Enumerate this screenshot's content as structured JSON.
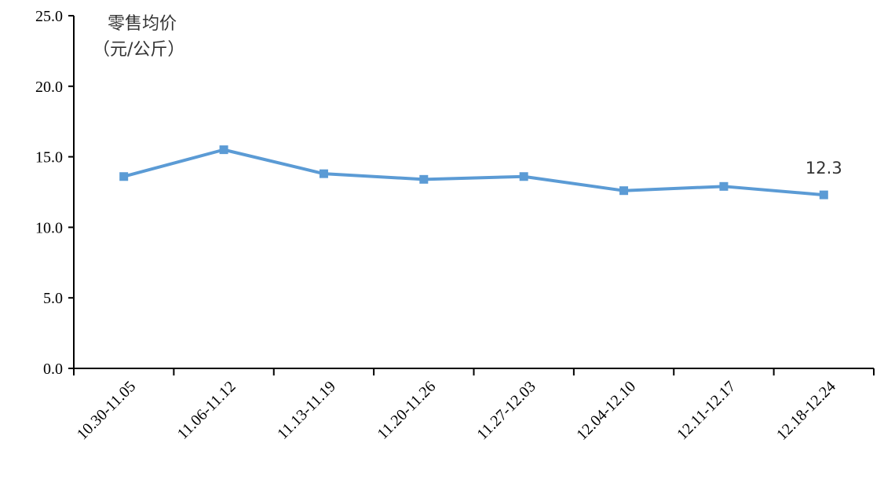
{
  "chart_data": {
    "type": "line",
    "title": "",
    "ylabel_lines": [
      "零售均价",
      "（元/公斤）"
    ],
    "xlabel": "",
    "ylim": [
      0,
      25
    ],
    "yticks": [
      "0.0",
      "5.0",
      "10.0",
      "15.0",
      "20.0",
      "25.0"
    ],
    "categories": [
      "10.30-11.05",
      "11.06-11.12",
      "11.13-11.19",
      "11.20-11.26",
      "11.27-12.03",
      "12.04-12.10",
      "12.11-12.17",
      "12.18-12.24"
    ],
    "series": [
      {
        "values": [
          13.6,
          15.5,
          13.8,
          13.4,
          13.6,
          12.6,
          12.9,
          12.3
        ]
      }
    ],
    "data_labels": [
      {
        "index": 7,
        "text": "12.3"
      }
    ],
    "grid": false,
    "legend": "none",
    "colors": {
      "line": "#5b9bd5",
      "axis": "#000000"
    }
  }
}
